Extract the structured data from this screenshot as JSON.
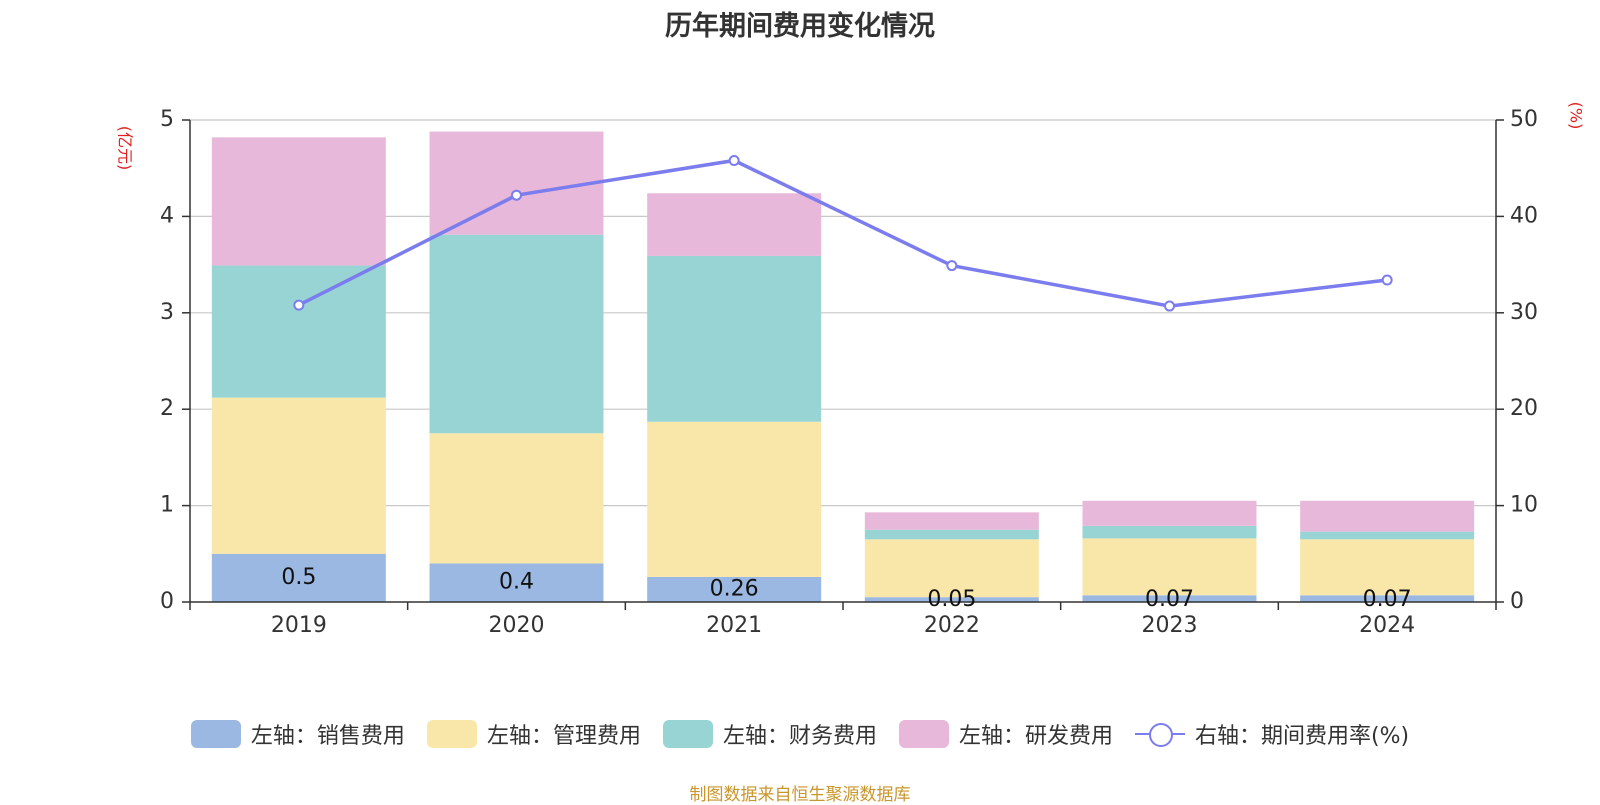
{
  "title": "历年期间费用变化情况",
  "source": "制图数据来自恒生聚源数据库",
  "colors": {
    "sales": "#9bb8e3",
    "admin": "#f8e7a8",
    "finance": "#98d4d4",
    "rnd": "#e8b8da",
    "ratio": "#7b7ced",
    "grid": "#c8c8c8",
    "axis": "#333333",
    "unit": "#e02020"
  },
  "chart_data": {
    "type": "bar",
    "stacked": true,
    "categories": [
      "2019",
      "2020",
      "2021",
      "2022",
      "2023",
      "2024"
    ],
    "left_axis": {
      "unit": "(亿元)",
      "ylim": [
        0,
        5
      ],
      "ticks": [
        0,
        1,
        2,
        3,
        4,
        5
      ]
    },
    "right_axis": {
      "unit": "(%)",
      "ylim": [
        0,
        50
      ],
      "ticks": [
        0,
        10,
        20,
        30,
        40,
        50
      ]
    },
    "series": [
      {
        "name": "左轴：销售费用",
        "axis": "left",
        "type": "bar",
        "color_key": "sales",
        "values": [
          0.5,
          0.4,
          0.26,
          0.05,
          0.07,
          0.07
        ],
        "labels": [
          "0.5",
          "0.4",
          "0.26",
          "0.05",
          "0.07",
          "0.07"
        ]
      },
      {
        "name": "左轴：管理费用",
        "axis": "left",
        "type": "bar",
        "color_key": "admin",
        "values": [
          1.62,
          1.35,
          1.61,
          0.6,
          0.59,
          0.58
        ]
      },
      {
        "name": "左轴：财务费用",
        "axis": "left",
        "type": "bar",
        "color_key": "finance",
        "values": [
          1.37,
          2.06,
          1.72,
          0.1,
          0.13,
          0.08
        ]
      },
      {
        "name": "左轴：研发费用",
        "axis": "left",
        "type": "bar",
        "color_key": "rnd",
        "values": [
          1.33,
          1.07,
          0.65,
          0.18,
          0.26,
          0.32
        ]
      },
      {
        "name": "右轴：期间费用率(%)",
        "axis": "right",
        "type": "line",
        "color_key": "ratio",
        "values": [
          30.8,
          42.2,
          45.8,
          34.9,
          30.7,
          33.4
        ]
      }
    ],
    "grid": true,
    "legend_position": "bottom"
  }
}
